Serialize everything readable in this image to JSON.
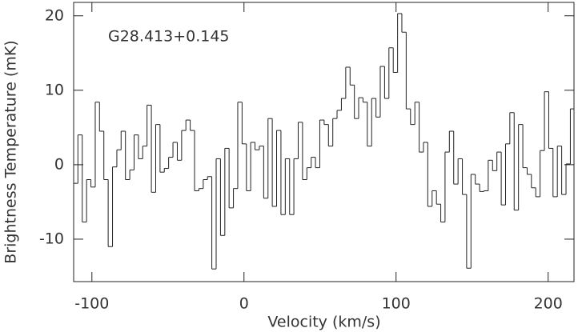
{
  "chart_data": {
    "type": "step",
    "annotation": "G28.413+0.145",
    "xlabel": "Velocity (km/s)",
    "ylabel": "Brightness Temperature (mK)",
    "xlim": [
      -112,
      217
    ],
    "ylim": [
      -15.7,
      21.8
    ],
    "xticks": [
      -100,
      0,
      100,
      200
    ],
    "yticks": [
      -10,
      0,
      10,
      20
    ],
    "color": "#222222",
    "x": [
      -110.6,
      -107.8,
      -104.9,
      -102.1,
      -99.2,
      -96.4,
      -93.6,
      -90.7,
      -87.9,
      -85.0,
      -82.2,
      -79.4,
      -76.5,
      -73.7,
      -70.8,
      -68.0,
      -65.2,
      -62.3,
      -59.5,
      -56.6,
      -53.8,
      -51.0,
      -48.1,
      -45.3,
      -42.4,
      -39.6,
      -36.8,
      -33.9,
      -31.1,
      -28.2,
      -25.4,
      -22.6,
      -19.7,
      -16.9,
      -14.0,
      -11.2,
      -8.4,
      -5.5,
      -2.7,
      0.2,
      3.0,
      5.8,
      8.7,
      11.5,
      14.4,
      17.2,
      20.0,
      22.9,
      25.7,
      28.6,
      31.4,
      34.2,
      37.1,
      39.9,
      42.8,
      45.6,
      48.4,
      51.3,
      54.1,
      57.0,
      59.8,
      62.6,
      65.5,
      68.3,
      71.2,
      74.0,
      76.8,
      79.7,
      82.5,
      85.4,
      88.2,
      91.0,
      93.9,
      96.7,
      99.6,
      102.4,
      105.2,
      108.1,
      110.9,
      113.8,
      116.6,
      119.4,
      122.3,
      125.1,
      128.0,
      130.8,
      133.6,
      136.5,
      139.3,
      142.2,
      145.0,
      147.8,
      150.7,
      153.5,
      156.4,
      159.2,
      162.0,
      164.9,
      167.7,
      170.6,
      173.4,
      176.2,
      179.1,
      181.9,
      184.8,
      187.6,
      190.4,
      193.3,
      196.1,
      199.0,
      201.8,
      204.6,
      207.5,
      210.3,
      213.2,
      216.0
    ],
    "values": [
      -2.5,
      4,
      -7.7,
      -2,
      -3,
      8.4,
      4.5,
      -2,
      -11,
      -0.3,
      2,
      4.5,
      -2,
      -0.7,
      4,
      0.8,
      2.5,
      8,
      -3.7,
      5.4,
      -1,
      -0.5,
      1,
      3,
      0.6,
      4.6,
      6,
      4.6,
      -3.5,
      -3.2,
      -2,
      -1.6,
      -14,
      0.8,
      -9.5,
      2.2,
      -5.8,
      -3.2,
      8.4,
      2.8,
      -3.5,
      3,
      2,
      2.5,
      -4.5,
      6.2,
      -5.6,
      4.6,
      -6.7,
      0.8,
      -6.7,
      0.8,
      5.7,
      -2,
      -0.4,
      1,
      -0.4,
      6,
      5.4,
      2.5,
      6.2,
      7.3,
      8.9,
      13.1,
      10.7,
      6.2,
      9,
      8.4,
      2.5,
      8.9,
      6.4,
      13.2,
      8.9,
      15.7,
      12.4,
      20.3,
      17.8,
      7.5,
      5.4,
      8.4,
      1.7,
      3,
      -5.6,
      -3.5,
      -5.3,
      -7.7,
      1.7,
      4.5,
      -2.6,
      0.8,
      -4,
      -13.9,
      -1.3,
      -2.6,
      -3.6,
      -3.5,
      0.6,
      -0.8,
      1.7,
      -5.4,
      2.8,
      7,
      -6.1,
      5.4,
      -0.4,
      -1.3,
      -3.1,
      -4.3,
      1.9,
      9.8,
      2.2,
      -4.3,
      2.5,
      -4,
      0.1,
      7.5
    ]
  }
}
